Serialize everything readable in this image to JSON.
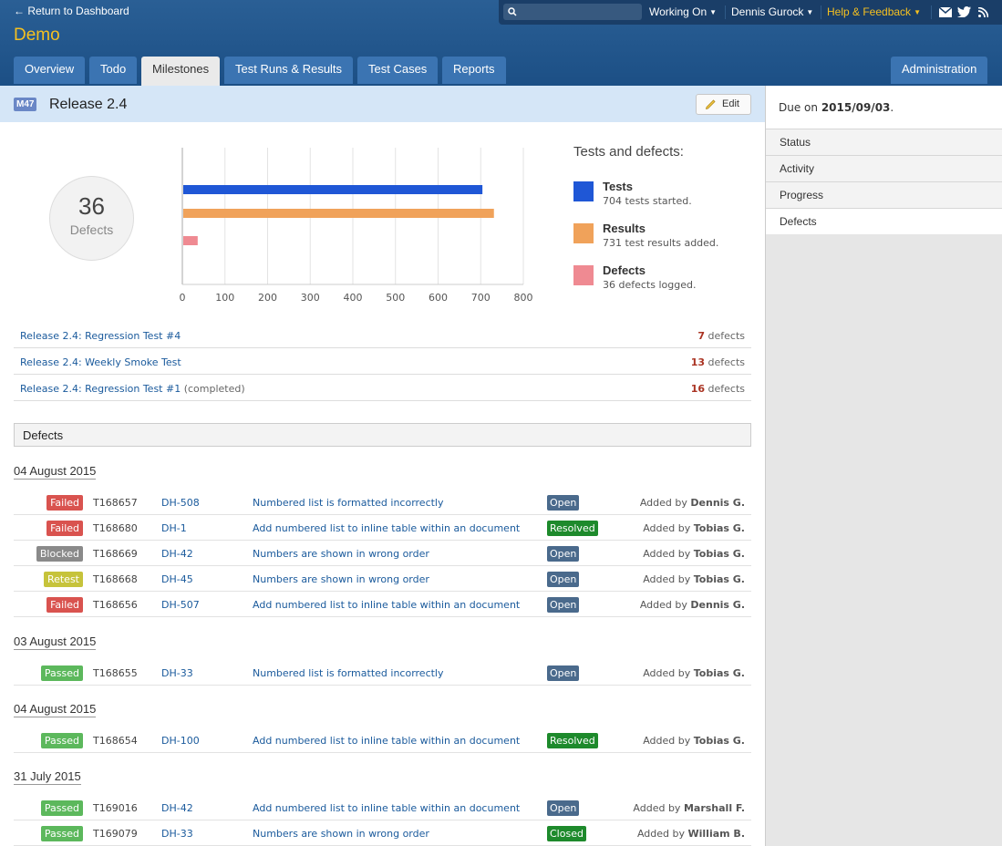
{
  "header": {
    "back_link": "← Return to Dashboard",
    "project": "Demo",
    "search_placeholder": "",
    "working_on": "Working On",
    "user": "Dennis Gurock",
    "help": "Help & Feedback"
  },
  "tabs": [
    {
      "label": "Overview"
    },
    {
      "label": "Todo"
    },
    {
      "label": "Milestones"
    },
    {
      "label": "Test Runs & Results"
    },
    {
      "label": "Test Cases"
    },
    {
      "label": "Reports"
    },
    {
      "label": "Administration"
    }
  ],
  "milestone": {
    "badge": "M47",
    "title": "Release 2.4",
    "edit_label": "Edit"
  },
  "summary": {
    "defects_count": "36",
    "defects_label": "Defects"
  },
  "legend": {
    "title": "Tests and defects:",
    "items": [
      {
        "label": "Tests",
        "desc": "704 tests started.",
        "color": "#1f57d6"
      },
      {
        "label": "Results",
        "desc": "731 test results added.",
        "color": "#f0a25a"
      },
      {
        "label": "Defects",
        "desc": "36 defects logged.",
        "color": "#ef8a92"
      }
    ]
  },
  "chart_data": {
    "type": "bar",
    "orientation": "horizontal",
    "categories": [
      "Tests",
      "Results",
      "Defects"
    ],
    "values": [
      704,
      731,
      36
    ],
    "colors": [
      "#1f57d6",
      "#f0a25a",
      "#ef8a92"
    ],
    "xlim": [
      0,
      800
    ],
    "xticks": [
      "0",
      "100",
      "200",
      "300",
      "400",
      "500",
      "600",
      "700",
      "800"
    ],
    "grid": true
  },
  "runs": [
    {
      "name": "Release 2.4: Regression Test #4",
      "suffix": "",
      "count": "7",
      "unit": "defects"
    },
    {
      "name": "Release 2.4: Weekly Smoke Test",
      "suffix": "",
      "count": "13",
      "unit": "defects"
    },
    {
      "name": "Release 2.4: Regression Test #1",
      "suffix": "(completed)",
      "count": "16",
      "unit": "defects"
    }
  ],
  "defects_section": {
    "title": "Defects"
  },
  "groups": [
    {
      "date": "04 August 2015",
      "rows": [
        {
          "status": "Failed",
          "test": "T168657",
          "id": "DH-508",
          "title": "Numbered list is formatted incorrectly",
          "state": "Open",
          "added_by_prefix": "Added by",
          "added_by": "Dennis G."
        },
        {
          "status": "Failed",
          "test": "T168680",
          "id": "DH-1",
          "title": "Add numbered list to inline table within an document",
          "state": "Resolved",
          "added_by_prefix": "Added by",
          "added_by": "Tobias G."
        },
        {
          "status": "Blocked",
          "test": "T168669",
          "id": "DH-42",
          "title": "Numbers are shown in wrong order",
          "state": "Open",
          "added_by_prefix": "Added by",
          "added_by": "Tobias G."
        },
        {
          "status": "Retest",
          "test": "T168668",
          "id": "DH-45",
          "title": "Numbers are shown in wrong order",
          "state": "Open",
          "added_by_prefix": "Added by",
          "added_by": "Tobias G."
        },
        {
          "status": "Failed",
          "test": "T168656",
          "id": "DH-507",
          "title": "Add numbered list to inline table within an document",
          "state": "Open",
          "added_by_prefix": "Added by",
          "added_by": "Dennis G."
        }
      ]
    },
    {
      "date": "03 August 2015",
      "rows": [
        {
          "status": "Passed",
          "test": "T168655",
          "id": "DH-33",
          "title": "Numbered list is formatted incorrectly",
          "state": "Open",
          "added_by_prefix": "Added by",
          "added_by": "Tobias G."
        }
      ]
    },
    {
      "date": "04 August 2015",
      "rows": [
        {
          "status": "Passed",
          "test": "T168654",
          "id": "DH-100",
          "title": "Add numbered list to inline table within an document",
          "state": "Resolved",
          "added_by_prefix": "Added by",
          "added_by": "Tobias G."
        }
      ]
    },
    {
      "date": "31 July 2015",
      "rows": [
        {
          "status": "Passed",
          "test": "T169016",
          "id": "DH-42",
          "title": "Add numbered list to inline table within an document",
          "state": "Open",
          "added_by_prefix": "Added by",
          "added_by": "Marshall F."
        },
        {
          "status": "Passed",
          "test": "T169079",
          "id": "DH-33",
          "title": "Numbers are shown in wrong order",
          "state": "Closed",
          "added_by_prefix": "Added by",
          "added_by": "William B."
        }
      ]
    }
  ],
  "status_colors": {
    "Failed": "#d9534f",
    "Blocked": "#8a8a8a",
    "Retest": "#c6c33b",
    "Passed": "#5cb85c"
  },
  "state_colors": {
    "Open": "#4a6a8c",
    "Resolved": "#1e8a2c",
    "Closed": "#1e8a2c"
  },
  "sidebar": {
    "due_prefix": "Due on",
    "due_date": "2015/09/03",
    "due_suffix": ".",
    "items": [
      {
        "label": "Status"
      },
      {
        "label": "Activity"
      },
      {
        "label": "Progress"
      },
      {
        "label": "Defects"
      }
    ]
  }
}
